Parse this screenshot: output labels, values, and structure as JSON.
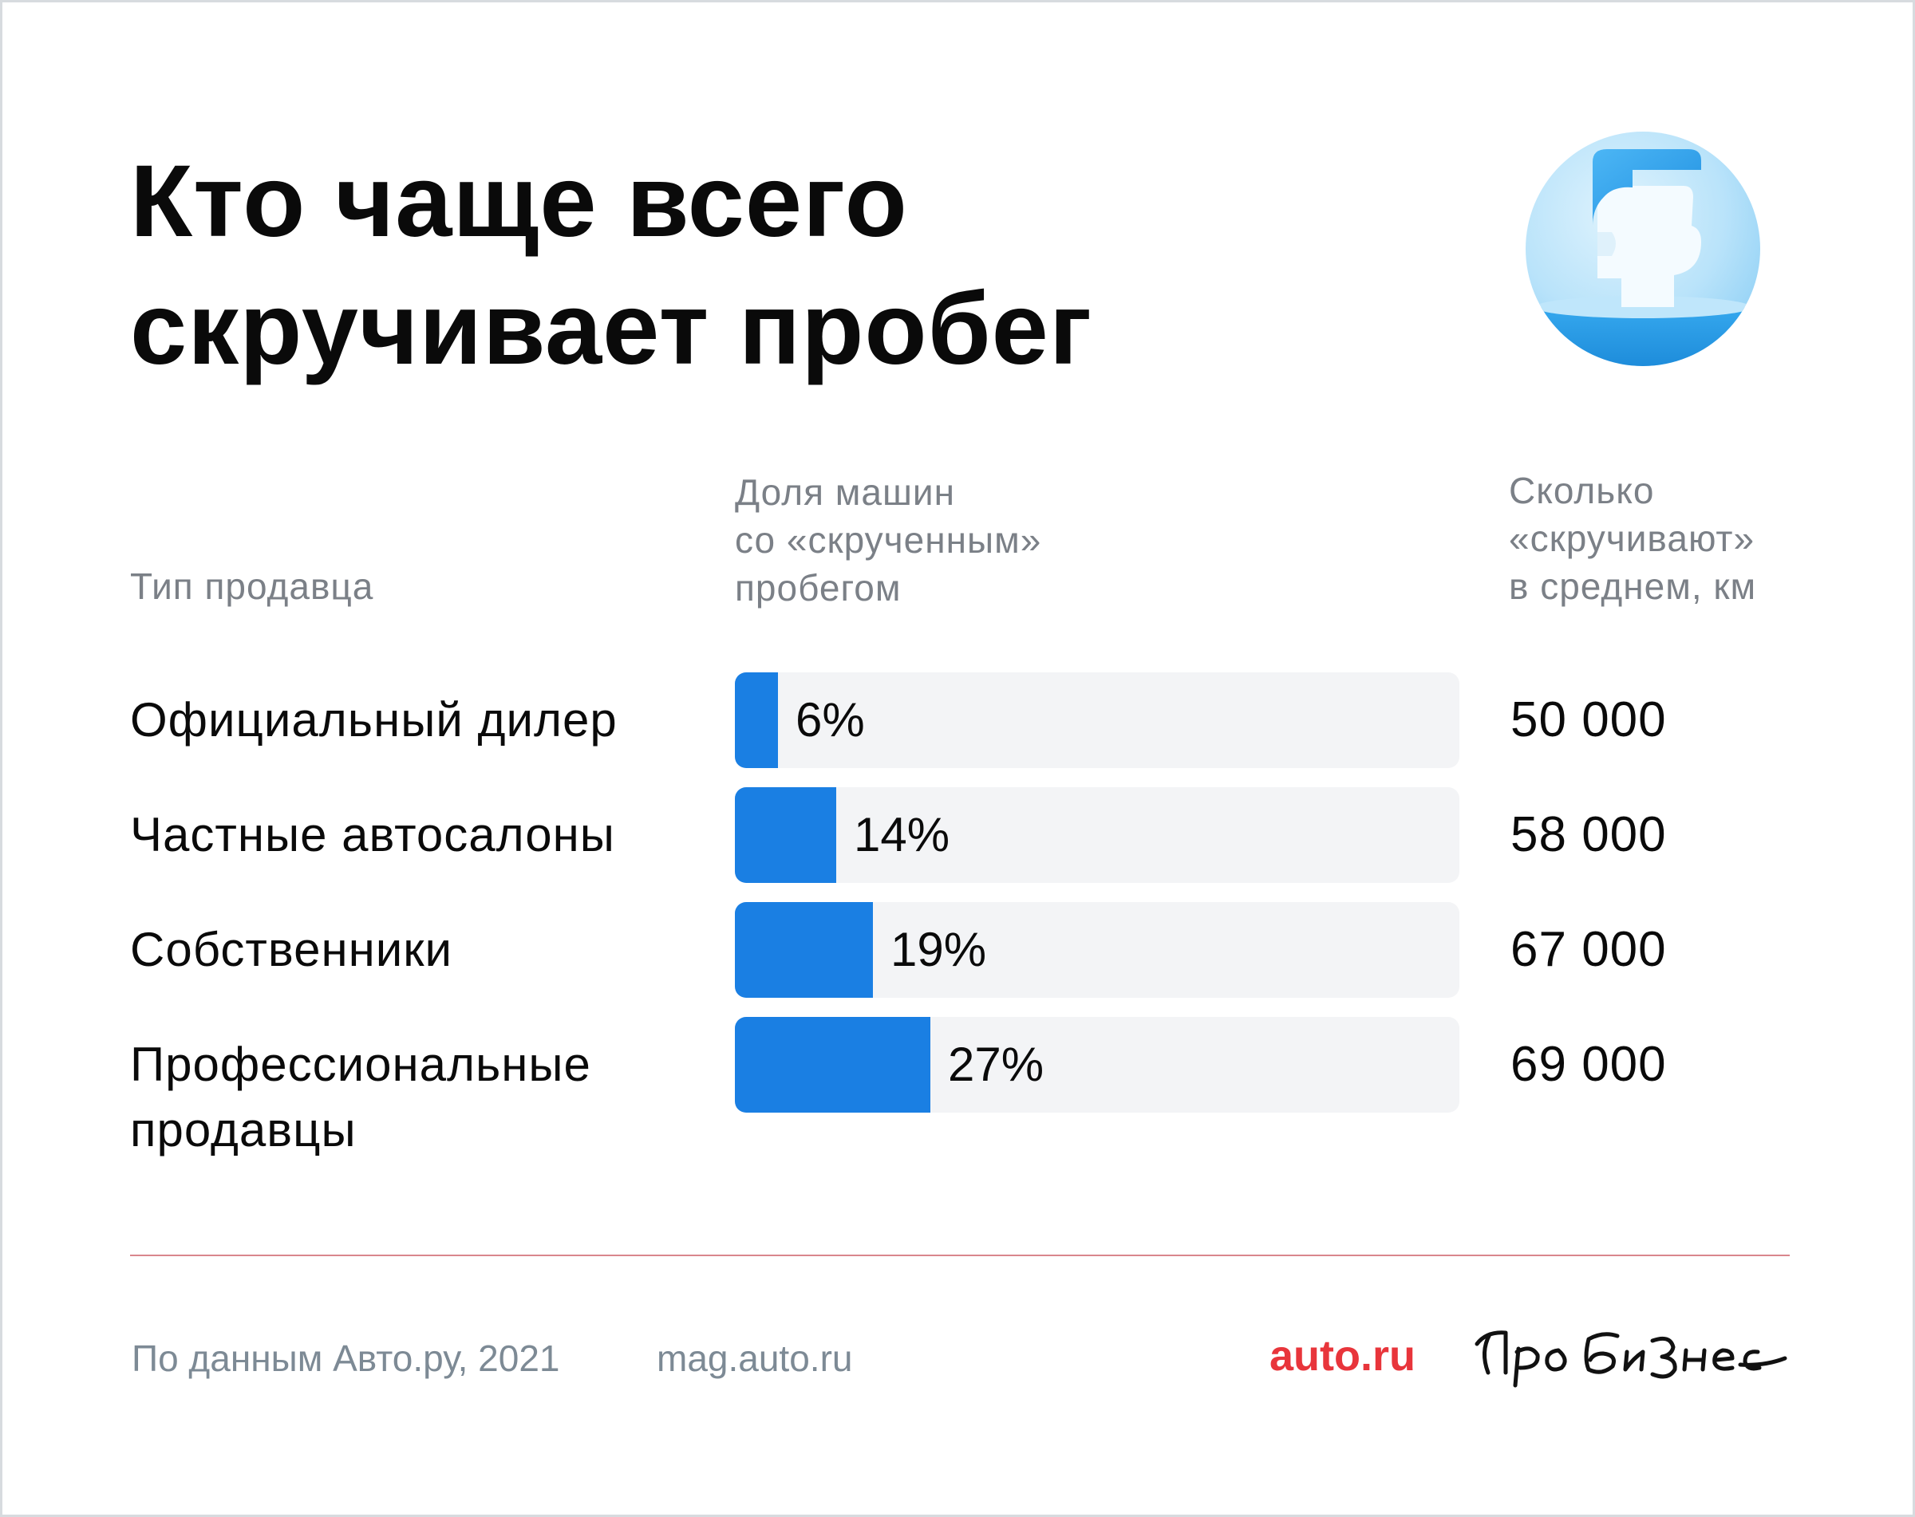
{
  "title_lines": [
    "Кто чаще всего",
    "скручивает пробег"
  ],
  "headers": {
    "seller": "Тип продавца",
    "share": [
      "Доля машин",
      "со «скрученным»",
      "пробегом"
    ],
    "mileage": [
      "Сколько",
      "«скручивают»",
      "в среднем, км"
    ]
  },
  "chart_data": {
    "type": "bar",
    "categories": [
      "Официальный дилер",
      "Частные автосалоны",
      "Собственники",
      "Профессиональные продавцы"
    ],
    "category_lines": [
      [
        "Официальный дилер"
      ],
      [
        "Частные автосалоны"
      ],
      [
        "Собственники"
      ],
      [
        "Профессиональные",
        "продавцы"
      ]
    ],
    "values": [
      6,
      14,
      19,
      27
    ],
    "value_labels": [
      "6%",
      "14%",
      "19%",
      "27%"
    ],
    "ylim": [
      0,
      100
    ],
    "mileage": [
      "50 000",
      "58 000",
      "67 000",
      "69 000"
    ],
    "bar_color": "#1a7fe3",
    "track_color": "#f3f4f6"
  },
  "footer": {
    "source": "По данным Авто.ру, 2021",
    "site": "mag.auto.ru",
    "logo_auto": "auto.ru",
    "logo_probiz": "Про бизнес"
  },
  "icons": {
    "avatar": "person-avatar-icon"
  },
  "colors": {
    "divider": "#d9868d",
    "logo_auto": "#e8353b",
    "muted_text": "#7b8087"
  }
}
